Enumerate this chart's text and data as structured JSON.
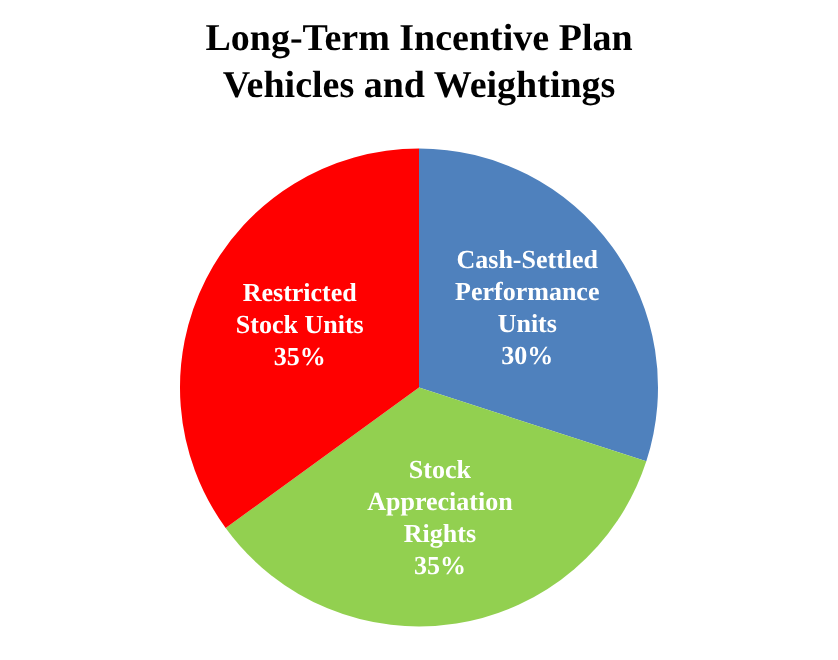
{
  "chart_data": {
    "type": "pie",
    "title": "Long-Term Incentive Plan Vehicles and Weightings",
    "categories": [
      "Cash-Settled Performance Units",
      "Stock Appreciation Rights",
      "Restricted Stock Units"
    ],
    "values": [
      30,
      35,
      35
    ],
    "colors": [
      "#4f81bd",
      "#92d050",
      "#ff0000"
    ],
    "value_labels": [
      "30%",
      "35%",
      "35%"
    ],
    "legend": false
  }
}
